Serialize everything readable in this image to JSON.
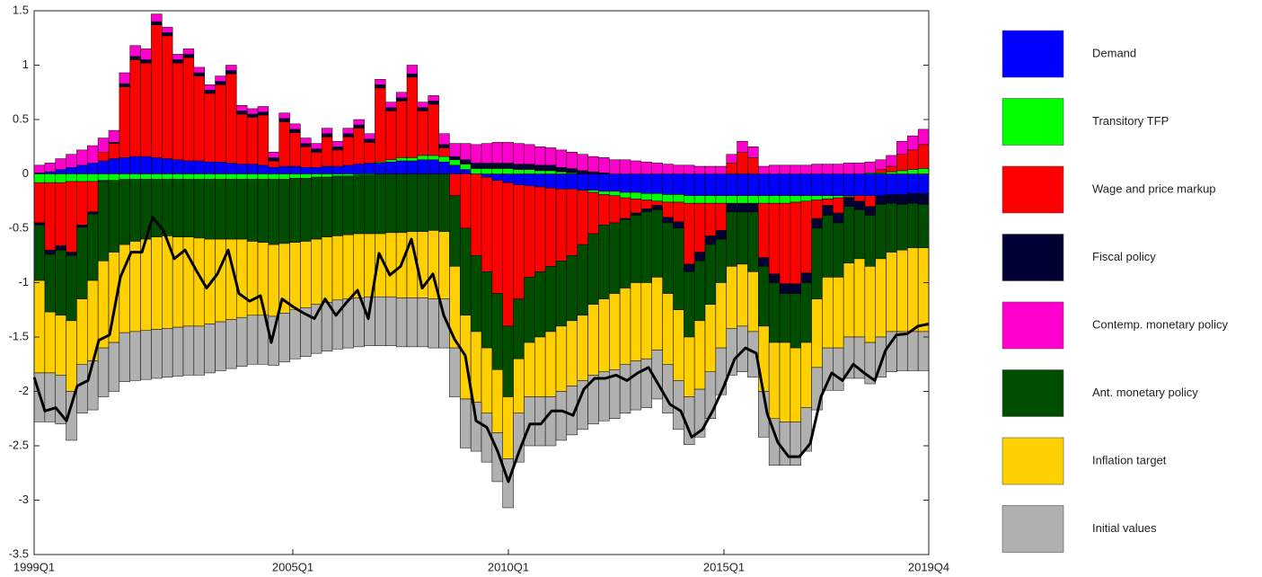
{
  "chart_data": {
    "type": "bar",
    "stacked": true,
    "legend": "right",
    "box": true,
    "categories": [
      "1999Q1",
      null,
      null,
      null,
      null,
      null,
      null,
      null,
      null,
      null,
      null,
      null,
      null,
      null,
      null,
      null,
      null,
      null,
      null,
      null,
      null,
      null,
      null,
      null,
      "2005Q1",
      null,
      null,
      null,
      null,
      null,
      null,
      null,
      null,
      null,
      null,
      null,
      null,
      null,
      null,
      null,
      null,
      null,
      null,
      null,
      "2010Q1",
      null,
      null,
      null,
      null,
      null,
      null,
      null,
      null,
      null,
      null,
      null,
      null,
      null,
      null,
      null,
      null,
      null,
      null,
      null,
      "2015Q1",
      null,
      null,
      null,
      null,
      null,
      null,
      null,
      null,
      null,
      null,
      null,
      null,
      null,
      null,
      null,
      null,
      null,
      null,
      "2019Q4"
    ],
    "ylim": [
      -3.5,
      1.5
    ],
    "yticks": [
      -3.5,
      -3,
      -2.5,
      -2,
      -1.5,
      -1,
      -0.5,
      0,
      0.5,
      1,
      1.5
    ],
    "series": [
      {
        "name": "Demand",
        "color": "#0000ff",
        "values": [
          0.01,
          0.02,
          0.04,
          0.06,
          0.08,
          0.1,
          0.12,
          0.14,
          0.15,
          0.16,
          0.16,
          0.15,
          0.14,
          0.13,
          0.12,
          0.12,
          0.11,
          0.11,
          0.1,
          0.09,
          0.09,
          0.08,
          0.06,
          0.07,
          0.07,
          0.06,
          0.06,
          0.07,
          0.07,
          0.08,
          0.09,
          0.1,
          0.1,
          0.11,
          0.12,
          0.12,
          0.13,
          0.13,
          0.11,
          0.08,
          0.04,
          0,
          -0.03,
          -0.06,
          -0.08,
          -0.1,
          -0.11,
          -0.12,
          -0.13,
          -0.14,
          -0.14,
          -0.15,
          -0.15,
          -0.16,
          -0.16,
          -0.17,
          -0.17,
          -0.18,
          -0.18,
          -0.19,
          -0.19,
          -0.2,
          -0.2,
          -0.2,
          -0.2,
          -0.2,
          -0.2,
          -0.2,
          -0.2,
          -0.2,
          -0.2,
          -0.2,
          -0.2,
          -0.2,
          -0.2,
          -0.2,
          -0.2,
          -0.2,
          -0.2,
          -0.2,
          -0.19,
          -0.19,
          -0.18,
          -0.18
        ]
      },
      {
        "name": "Transitory TFP",
        "color": "#00ff00",
        "values": [
          -0.08,
          -0.08,
          -0.08,
          -0.07,
          -0.07,
          -0.07,
          -0.06,
          -0.06,
          -0.05,
          -0.05,
          -0.05,
          -0.05,
          -0.05,
          -0.05,
          -0.05,
          -0.05,
          -0.05,
          -0.05,
          -0.05,
          -0.05,
          -0.05,
          -0.05,
          -0.05,
          -0.05,
          -0.04,
          -0.04,
          -0.03,
          -0.03,
          -0.02,
          -0.02,
          -0.01,
          -0.01,
          0.01,
          0.02,
          0.03,
          0.03,
          0.04,
          0.04,
          0.05,
          0.05,
          0.05,
          0.05,
          0.05,
          0.05,
          0.05,
          0.04,
          0.04,
          0.03,
          0.03,
          0.02,
          0.01,
          0,
          -0.02,
          -0.03,
          -0.04,
          -0.05,
          -0.06,
          -0.06,
          -0.07,
          -0.07,
          -0.07,
          -0.07,
          -0.07,
          -0.07,
          -0.07,
          -0.07,
          -0.07,
          -0.07,
          -0.07,
          -0.07,
          -0.07,
          -0.06,
          -0.05,
          -0.04,
          -0.03,
          -0.02,
          -0.01,
          0,
          0.01,
          0.01,
          0.02,
          0.03,
          0.04,
          0.05
        ]
      },
      {
        "name": "Wage and price markup",
        "color": "#ff0000",
        "values": [
          -0.37,
          -0.62,
          -0.58,
          -0.65,
          -0.4,
          -0.28,
          0.08,
          0.14,
          0.65,
          0.89,
          0.86,
          1.22,
          1.13,
          0.89,
          0.95,
          0.78,
          0.63,
          0.71,
          0.82,
          0.46,
          0.43,
          0.46,
          0.06,
          0.41,
          0.31,
          0.19,
          0.14,
          0.27,
          0.15,
          0.26,
          0.33,
          0.19,
          0.68,
          0.45,
          0.52,
          0.74,
          0.41,
          0.47,
          0.08,
          -0.2,
          -0.5,
          -0.75,
          -0.87,
          -1.04,
          -1.32,
          -1.05,
          -0.84,
          -0.78,
          -0.72,
          -0.66,
          -0.61,
          -0.5,
          -0.38,
          -0.28,
          -0.25,
          -0.19,
          -0.13,
          -0.08,
          -0.04,
          -0.14,
          -0.18,
          -0.56,
          -0.45,
          -0.3,
          -0.25,
          0.1,
          0.2,
          0.15,
          -0.5,
          -0.65,
          -0.74,
          -0.75,
          -0.66,
          -0.17,
          -0.06,
          -0.14,
          -0.01,
          -0.05,
          -0.1,
          0.03,
          0.05,
          0.15,
          0.18,
          0.22
        ]
      },
      {
        "name": "Fiscal policy",
        "color": "#000033",
        "values": [
          -0.02,
          -0.04,
          -0.04,
          -0.03,
          -0.02,
          -0.02,
          -0.01,
          0.01,
          0.03,
          0.03,
          0.03,
          0.03,
          0.03,
          0.03,
          0.03,
          0.03,
          0.03,
          0.03,
          0.03,
          0.03,
          0.03,
          0.03,
          0.03,
          0.03,
          0.03,
          0.03,
          0.03,
          0.03,
          0.03,
          0.03,
          0.03,
          0.03,
          0.03,
          0.03,
          0.03,
          0.03,
          0.03,
          0.03,
          0.03,
          0.03,
          0.04,
          0.05,
          0.05,
          0.05,
          0.05,
          0.05,
          0.05,
          0.05,
          0.05,
          0.04,
          0.04,
          0.03,
          0.02,
          0.01,
          0,
          -0.01,
          -0.02,
          -0.03,
          -0.04,
          -0.05,
          -0.06,
          -0.07,
          -0.08,
          -0.08,
          -0.08,
          -0.08,
          -0.08,
          -0.08,
          -0.08,
          -0.08,
          -0.09,
          -0.09,
          -0.09,
          -0.09,
          -0.09,
          -0.09,
          -0.08,
          -0.08,
          -0.08,
          -0.08,
          -0.08,
          -0.09,
          -0.09,
          -0.1
        ]
      },
      {
        "name": "Contemp. monetary policy",
        "color": "#ff00cc",
        "values": [
          0.07,
          0.08,
          0.1,
          0.12,
          0.14,
          0.16,
          0.13,
          0.11,
          0.1,
          0.1,
          0.1,
          0.07,
          0.05,
          0.05,
          0.05,
          0.05,
          0.05,
          0.05,
          0.05,
          0.05,
          0.05,
          0.05,
          0.05,
          0.05,
          0.05,
          0.05,
          0.05,
          0.05,
          0.05,
          0.05,
          0.05,
          0.05,
          0.05,
          0.05,
          0.05,
          0.08,
          0.05,
          0.05,
          0.1,
          0.12,
          0.15,
          0.17,
          0.18,
          0.19,
          0.19,
          0.19,
          0.18,
          0.17,
          0.16,
          0.16,
          0.15,
          0.15,
          0.14,
          0.14,
          0.13,
          0.13,
          0.12,
          0.11,
          0.1,
          0.09,
          0.08,
          0.08,
          0.07,
          0.07,
          0.07,
          0.08,
          0.1,
          0.1,
          0.07,
          0.08,
          0.08,
          0.08,
          0.08,
          0.09,
          0.09,
          0.09,
          0.1,
          0.1,
          0.1,
          0.09,
          0.1,
          0.12,
          0.13,
          0.14
        ]
      },
      {
        "name": "Ant. monetary policy",
        "color": "#004d00",
        "values": [
          -0.51,
          -0.53,
          -0.6,
          -0.6,
          -0.66,
          -0.61,
          -0.73,
          -0.66,
          -0.6,
          -0.57,
          -0.55,
          -0.53,
          -0.52,
          -0.53,
          -0.53,
          -0.54,
          -0.55,
          -0.55,
          -0.55,
          -0.55,
          -0.57,
          -0.58,
          -0.6,
          -0.59,
          -0.59,
          -0.58,
          -0.57,
          -0.55,
          -0.55,
          -0.54,
          -0.54,
          -0.54,
          -0.55,
          -0.54,
          -0.54,
          -0.53,
          -0.53,
          -0.52,
          -0.53,
          -0.65,
          -0.8,
          -0.7,
          -0.7,
          -0.7,
          -0.65,
          -0.55,
          -0.6,
          -0.6,
          -0.6,
          -0.6,
          -0.6,
          -0.65,
          -0.65,
          -0.68,
          -0.65,
          -0.63,
          -0.62,
          -0.65,
          -0.62,
          -0.65,
          -0.75,
          -0.6,
          -0.55,
          -0.55,
          -0.4,
          -0.5,
          -0.48,
          -0.55,
          -0.55,
          -0.55,
          -0.45,
          -0.5,
          -0.55,
          -0.65,
          -0.57,
          -0.5,
          -0.52,
          -0.45,
          -0.47,
          -0.5,
          -0.45,
          -0.42,
          -0.41,
          -0.4
        ]
      },
      {
        "name": "Inflation target",
        "color": "#ffd000",
        "values": [
          -0.85,
          -0.56,
          -0.55,
          -0.65,
          -0.6,
          -0.74,
          -0.8,
          -0.83,
          -0.81,
          -0.83,
          -0.84,
          -0.85,
          -0.85,
          -0.83,
          -0.82,
          -0.81,
          -0.78,
          -0.76,
          -0.74,
          -0.72,
          -0.68,
          -0.67,
          -0.66,
          -0.64,
          -0.62,
          -0.61,
          -0.6,
          -0.6,
          -0.59,
          -0.59,
          -0.59,
          -0.58,
          -0.58,
          -0.59,
          -0.6,
          -0.61,
          -0.61,
          -0.63,
          -0.62,
          -0.75,
          -0.77,
          -0.65,
          -0.6,
          -0.58,
          -0.57,
          -0.5,
          -0.5,
          -0.55,
          -0.6,
          -0.6,
          -0.6,
          -0.6,
          -0.65,
          -0.67,
          -0.7,
          -0.7,
          -0.72,
          -0.7,
          -0.67,
          -0.65,
          -0.65,
          -0.55,
          -0.63,
          -0.62,
          -0.6,
          -0.57,
          -0.57,
          -0.55,
          -0.6,
          -0.7,
          -0.73,
          -0.68,
          -0.6,
          -0.63,
          -0.65,
          -0.65,
          -0.68,
          -0.72,
          -0.7,
          -0.72,
          -0.73,
          -0.75,
          -0.77,
          -0.77
        ]
      },
      {
        "name": "Initial values",
        "color": "#b0b0b0",
        "values": [
          -0.45,
          -0.45,
          -0.45,
          -0.45,
          -0.45,
          -0.45,
          -0.45,
          -0.45,
          -0.45,
          -0.45,
          -0.45,
          -0.45,
          -0.45,
          -0.45,
          -0.45,
          -0.45,
          -0.45,
          -0.45,
          -0.45,
          -0.45,
          -0.45,
          -0.45,
          -0.45,
          -0.45,
          -0.45,
          -0.45,
          -0.45,
          -0.45,
          -0.45,
          -0.45,
          -0.45,
          -0.45,
          -0.45,
          -0.45,
          -0.45,
          -0.45,
          -0.45,
          -0.45,
          -0.45,
          -0.45,
          -0.45,
          -0.45,
          -0.45,
          -0.45,
          -0.45,
          -0.45,
          -0.45,
          -0.45,
          -0.45,
          -0.45,
          -0.45,
          -0.45,
          -0.45,
          -0.45,
          -0.45,
          -0.45,
          -0.45,
          -0.45,
          -0.45,
          -0.45,
          -0.45,
          -0.44,
          -0.44,
          -0.43,
          -0.43,
          -0.43,
          -0.42,
          -0.42,
          -0.42,
          -0.43,
          -0.4,
          -0.4,
          -0.4,
          -0.39,
          -0.39,
          -0.39,
          -0.38,
          -0.38,
          -0.38,
          -0.37,
          -0.37,
          -0.36,
          -0.36,
          -0.36
        ]
      }
    ],
    "line": {
      "color": "#000000",
      "values": [
        -1.87,
        -2.18,
        -2.15,
        -2.27,
        -1.95,
        -1.9,
        -1.53,
        -1.48,
        -0.95,
        -0.72,
        -0.72,
        -0.4,
        -0.52,
        -0.78,
        -0.7,
        -0.88,
        -1.05,
        -0.92,
        -0.7,
        -1.1,
        -1.17,
        -1.12,
        -1.55,
        -1.15,
        -1.22,
        -1.28,
        -1.33,
        -1.15,
        -1.3,
        -1.18,
        -1.07,
        -1.33,
        -0.73,
        -0.93,
        -0.85,
        -0.6,
        -1.05,
        -0.92,
        -1.3,
        -1.52,
        -1.67,
        -2.27,
        -2.33,
        -2.55,
        -2.83,
        -2.55,
        -2.3,
        -2.3,
        -2.18,
        -2.18,
        -2.22,
        -1.98,
        -1.88,
        -1.88,
        -1.85,
        -1.9,
        -1.83,
        -1.78,
        -1.95,
        -2.12,
        -2.18,
        -2.42,
        -2.35,
        -2.17,
        -1.95,
        -1.7,
        -1.6,
        -1.65,
        -2.2,
        -2.47,
        -2.6,
        -2.6,
        -2.48,
        -2.05,
        -1.83,
        -1.9,
        -1.75,
        -1.83,
        -1.9,
        -1.62,
        -1.48,
        -1.47,
        -1.4,
        -1.38
      ]
    }
  }
}
